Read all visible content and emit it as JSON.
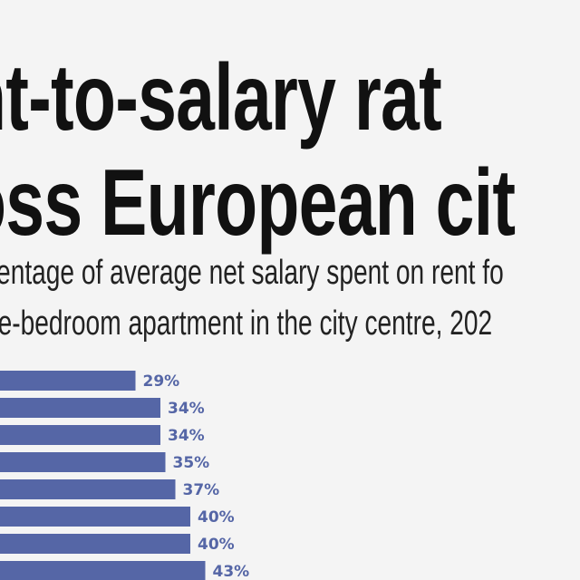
{
  "title": {
    "line1": "nt-to-salary rat",
    "line2": "oss European cit"
  },
  "subtitle": {
    "line1": "centage of average net salary spent on rent fo",
    "line2": "ne-bedroom apartment in the city centre, 202"
  },
  "colors": {
    "bar": "#5566a6",
    "label": "#5566a6",
    "title": "#111111",
    "background": "#f4f4f4"
  },
  "chart_data": {
    "type": "bar",
    "orientation": "horizontal",
    "categories": [],
    "values": [
      29,
      34,
      34,
      35,
      37,
      40,
      40,
      43
    ],
    "labels": [
      "29%",
      "34%",
      "34%",
      "35%",
      "37%",
      "40%",
      "40%",
      "43%"
    ],
    "xlim": [
      0,
      46
    ]
  }
}
